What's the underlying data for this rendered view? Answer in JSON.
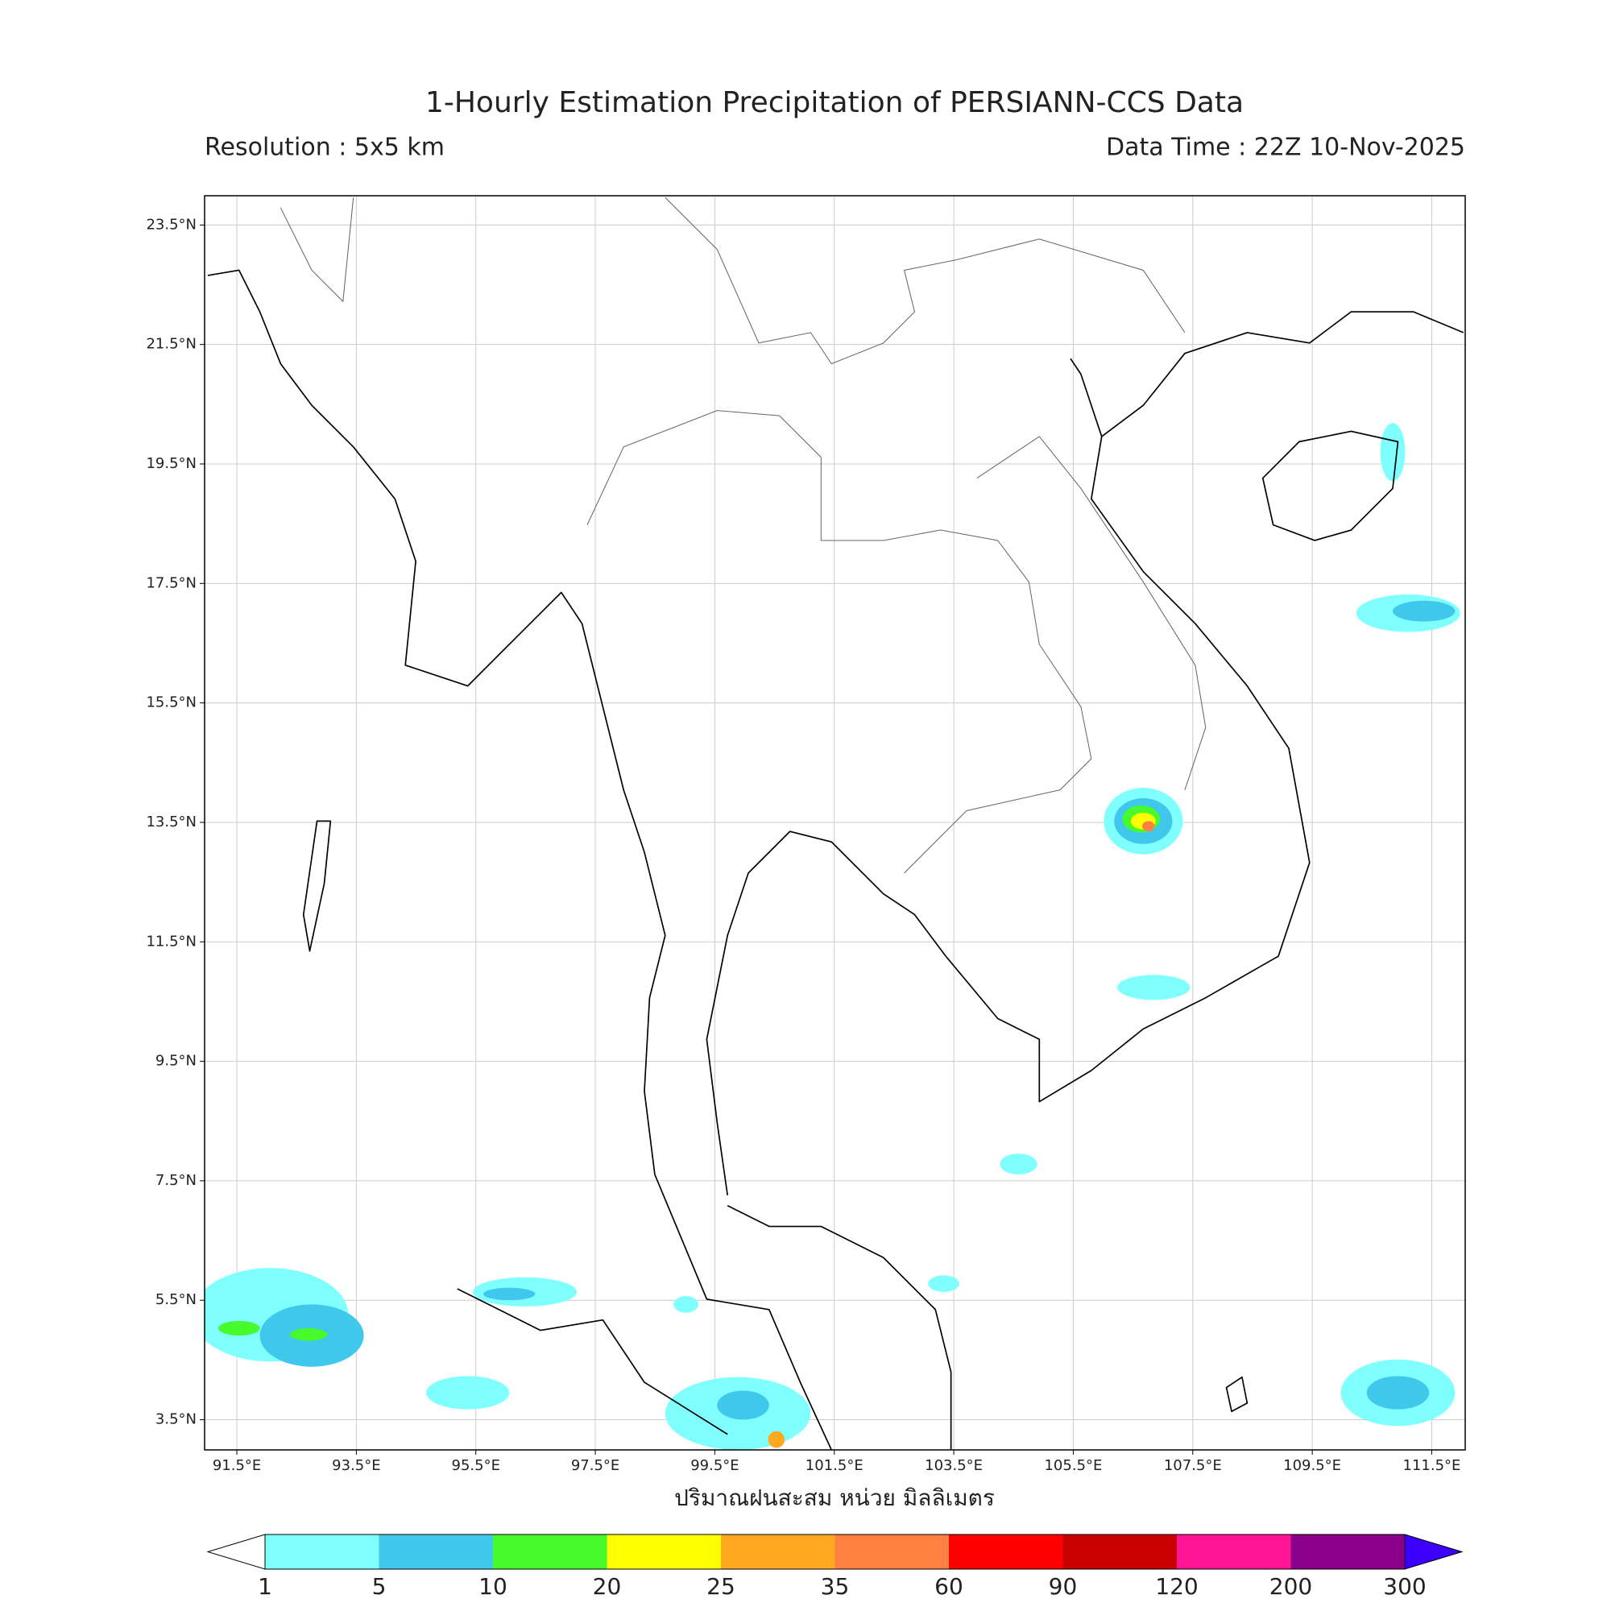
{
  "title": "1-Hourly Estimation Precipitation of PERSIANN-CCS Data",
  "resolution": "Resolution : 5x5 km",
  "data_time": "Data Time : 22Z 10-Nov-2025",
  "map": {
    "lon_lim": [
      90.96,
      112.06
    ],
    "lat_lim": [
      2.995,
      23.99
    ],
    "lon_ticks": [
      {
        "value": 91.5,
        "label": "91.5°E"
      },
      {
        "value": 93.5,
        "label": "93.5°E"
      },
      {
        "value": 95.5,
        "label": "95.5°E"
      },
      {
        "value": 97.5,
        "label": "97.5°E"
      },
      {
        "value": 99.5,
        "label": "99.5°E"
      },
      {
        "value": 101.5,
        "label": "101.5°E"
      },
      {
        "value": 103.5,
        "label": "103.5°E"
      },
      {
        "value": 105.5,
        "label": "105.5°E"
      },
      {
        "value": 107.5,
        "label": "107.5°E"
      },
      {
        "value": 109.5,
        "label": "109.5°E"
      },
      {
        "value": 111.5,
        "label": "111.5°E"
      }
    ],
    "lat_ticks": [
      {
        "value": 23.5,
        "label": "23.5°N"
      },
      {
        "value": 21.5,
        "label": "21.5°N"
      },
      {
        "value": 19.5,
        "label": "19.5°N"
      },
      {
        "value": 17.5,
        "label": "17.5°N"
      },
      {
        "value": 15.5,
        "label": "15.5°N"
      },
      {
        "value": 13.5,
        "label": "13.5°N"
      },
      {
        "value": 11.5,
        "label": "11.5°N"
      },
      {
        "value": 9.5,
        "label": "9.5°N"
      },
      {
        "value": 7.5,
        "label": "7.5°N"
      },
      {
        "value": 5.5,
        "label": "5.5°N"
      },
      {
        "value": 3.5,
        "label": "3.5°N"
      }
    ],
    "xlabel": "ปริมาณฝนสะสม หน่วย มิลลิเมตร"
  },
  "colorbar": {
    "levels": [
      1,
      5,
      10,
      20,
      25,
      35,
      60,
      90,
      120,
      200,
      300
    ],
    "colors": [
      "#80ffff",
      "#40c8ec",
      "#46fa2c",
      "#ffff00",
      "#ffa820",
      "#ff8040",
      "#ff0000",
      "#c80000",
      "#ff1493",
      "#8b008b"
    ],
    "under_color": "#ffffff",
    "over_color": "#3c00ff"
  }
}
